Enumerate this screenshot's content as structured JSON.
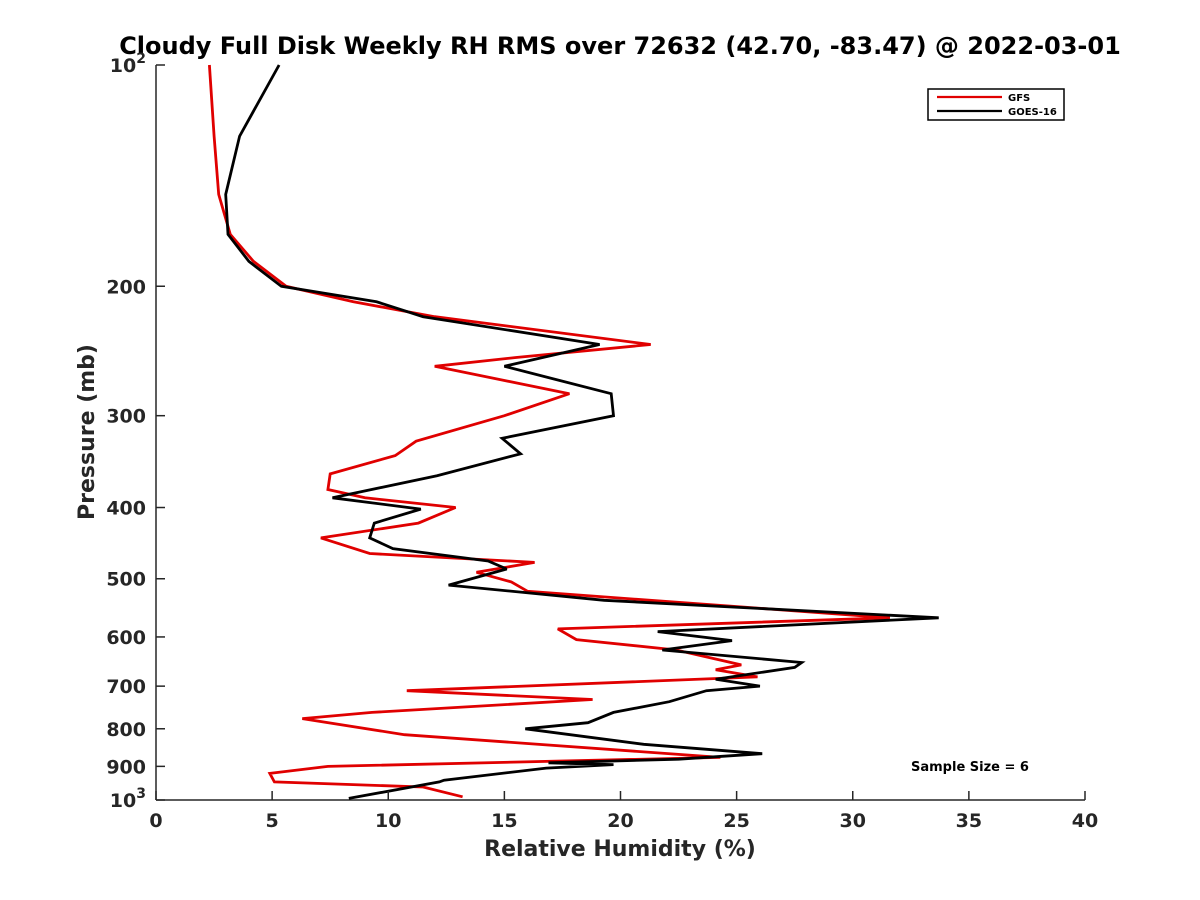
{
  "chart_data": {
    "type": "line",
    "title": "Cloudy Full Disk Weekly RH RMS over 72632 (42.70, -83.47) @ 2022-03-01",
    "xlabel": "Relative Humidity (%)",
    "ylabel": "Pressure (mb)",
    "xlim": [
      0,
      40
    ],
    "ylim": [
      100,
      1000
    ],
    "y_scale": "log",
    "y_reversed": true,
    "grid": false,
    "legend_position": "top-right",
    "x_ticks": [
      {
        "value": 0,
        "label": "0"
      },
      {
        "value": 5,
        "label": "5"
      },
      {
        "value": 10,
        "label": "10"
      },
      {
        "value": 15,
        "label": "15"
      },
      {
        "value": 20,
        "label": "20"
      },
      {
        "value": 25,
        "label": "25"
      },
      {
        "value": 30,
        "label": "30"
      },
      {
        "value": 35,
        "label": "35"
      },
      {
        "value": 40,
        "label": "40"
      }
    ],
    "y_ticks": [
      {
        "value": 100,
        "label": "10",
        "sup": "2"
      },
      {
        "value": 200,
        "label": "200",
        "sup": ""
      },
      {
        "value": 300,
        "label": "300",
        "sup": ""
      },
      {
        "value": 400,
        "label": "400",
        "sup": ""
      },
      {
        "value": 500,
        "label": "500",
        "sup": ""
      },
      {
        "value": 600,
        "label": "600",
        "sup": ""
      },
      {
        "value": 700,
        "label": "700",
        "sup": ""
      },
      {
        "value": 800,
        "label": "800",
        "sup": ""
      },
      {
        "value": 900,
        "label": "900",
        "sup": ""
      },
      {
        "value": 1000,
        "label": "10",
        "sup": "3"
      }
    ],
    "series": [
      {
        "name": "GFS",
        "color": "#e00000",
        "points": [
          [
            2.3,
            100
          ],
          [
            2.5,
            125
          ],
          [
            2.7,
            150
          ],
          [
            3.2,
            170
          ],
          [
            4.2,
            185
          ],
          [
            5.6,
            200
          ],
          [
            8.5,
            210
          ],
          [
            12.0,
            220
          ],
          [
            21.3,
            240
          ],
          [
            15.5,
            250
          ],
          [
            12.0,
            257
          ],
          [
            17.8,
            280
          ],
          [
            15.0,
            300
          ],
          [
            11.2,
            325
          ],
          [
            10.3,
            340
          ],
          [
            7.5,
            360
          ],
          [
            7.4,
            378
          ],
          [
            9.0,
            388
          ],
          [
            12.9,
            400
          ],
          [
            11.3,
            420
          ],
          [
            7.1,
            440
          ],
          [
            9.2,
            462
          ],
          [
            16.3,
            475
          ],
          [
            13.8,
            490
          ],
          [
            15.3,
            505
          ],
          [
            16.0,
            520
          ],
          [
            31.6,
            565
          ],
          [
            17.3,
            585
          ],
          [
            18.1,
            605
          ],
          [
            22.4,
            625
          ],
          [
            25.2,
            655
          ],
          [
            24.1,
            665
          ],
          [
            25.9,
            680
          ],
          [
            10.8,
            710
          ],
          [
            18.8,
            730
          ],
          [
            9.3,
            760
          ],
          [
            6.3,
            775
          ],
          [
            10.7,
            815
          ],
          [
            24.3,
            875
          ],
          [
            7.4,
            900
          ],
          [
            4.9,
            920
          ],
          [
            5.1,
            945
          ],
          [
            11.5,
            960
          ],
          [
            13.2,
            990
          ]
        ]
      },
      {
        "name": "GOES-16",
        "color": "#000000",
        "points": [
          [
            5.3,
            100
          ],
          [
            3.6,
            125
          ],
          [
            3.0,
            150
          ],
          [
            3.1,
            170
          ],
          [
            4.0,
            185
          ],
          [
            5.4,
            200
          ],
          [
            9.5,
            210
          ],
          [
            11.5,
            220
          ],
          [
            19.1,
            240
          ],
          [
            15.0,
            257
          ],
          [
            19.6,
            280
          ],
          [
            19.7,
            300
          ],
          [
            14.9,
            322
          ],
          [
            15.7,
            338
          ],
          [
            12.1,
            362
          ],
          [
            7.6,
            388
          ],
          [
            11.4,
            402
          ],
          [
            9.4,
            420
          ],
          [
            9.2,
            440
          ],
          [
            10.2,
            455
          ],
          [
            14.3,
            473
          ],
          [
            15.1,
            485
          ],
          [
            12.6,
            510
          ],
          [
            19.3,
            535
          ],
          [
            33.7,
            565
          ],
          [
            21.6,
            590
          ],
          [
            24.8,
            607
          ],
          [
            21.8,
            625
          ],
          [
            27.8,
            650
          ],
          [
            27.5,
            660
          ],
          [
            24.1,
            685
          ],
          [
            26.0,
            700
          ],
          [
            23.7,
            710
          ],
          [
            22.1,
            735
          ],
          [
            19.7,
            760
          ],
          [
            18.6,
            785
          ],
          [
            15.9,
            800
          ],
          [
            21.0,
            840
          ],
          [
            26.1,
            865
          ],
          [
            22.5,
            880
          ],
          [
            16.9,
            890
          ],
          [
            19.7,
            895
          ],
          [
            16.8,
            905
          ],
          [
            12.4,
            940
          ],
          [
            12.2,
            945
          ],
          [
            8.3,
            995
          ]
        ]
      }
    ]
  },
  "annotations": {
    "sample_size": "Sample Size = 6"
  }
}
